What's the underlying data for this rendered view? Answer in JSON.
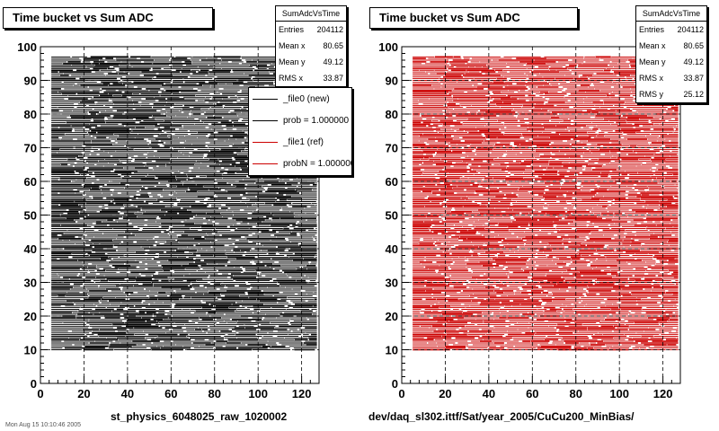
{
  "chart_data": [
    {
      "type": "scatter",
      "title": "Time bucket vs Sum ADC",
      "xlim": [
        0,
        128
      ],
      "ylim": [
        0,
        100
      ],
      "xticks": [
        0,
        20,
        40,
        60,
        80,
        100,
        120
      ],
      "yticks": [
        0,
        10,
        20,
        30,
        40,
        50,
        60,
        70,
        80,
        90,
        100
      ],
      "grid": true,
      "color": "#000000",
      "x_data_range": [
        5,
        127
      ],
      "y_data_range": [
        10,
        97
      ],
      "stats": {
        "title": "SumAdcVsTime",
        "rows": [
          {
            "label": "Entries",
            "value": "204112"
          },
          {
            "label": "Mean x",
            "value": "80.65"
          },
          {
            "label": "Mean y",
            "value": "49.12"
          },
          {
            "label": "RMS x",
            "value": "33.87"
          }
        ]
      },
      "legend": [
        {
          "label": "_file0 (new)",
          "color": "#000000"
        },
        {
          "label": "prob = 1.000000",
          "color": "#000000"
        },
        {
          "label": "_file1 (ref)",
          "color": "#cc0000"
        },
        {
          "label": "probN = 1.000000",
          "color": "#cc0000"
        }
      ],
      "file_label": "st_physics_6048025_raw_1020002"
    },
    {
      "type": "scatter",
      "title": "Time bucket vs Sum ADC",
      "xlim": [
        0,
        128
      ],
      "ylim": [
        0,
        100
      ],
      "xticks": [
        0,
        20,
        40,
        60,
        80,
        100,
        120
      ],
      "yticks": [
        0,
        10,
        20,
        30,
        40,
        50,
        60,
        70,
        80,
        90,
        100
      ],
      "grid": true,
      "color": "#cc0000",
      "x_data_range": [
        5,
        127
      ],
      "y_data_range": [
        10,
        97
      ],
      "stats": {
        "title": "SumAdcVsTime",
        "rows": [
          {
            "label": "Entries",
            "value": "204112"
          },
          {
            "label": "Mean x",
            "value": "80.65"
          },
          {
            "label": "Mean y",
            "value": "49.12"
          },
          {
            "label": "RMS x",
            "value": "33.87"
          },
          {
            "label": "RMS y",
            "value": "25.12"
          }
        ]
      },
      "file_label": "dev/daq_sl302.ittf/Sat/year_2005/CuCu200_MinBias/"
    }
  ],
  "footer_note": "Mon Aug 15 10:10:46 2005"
}
